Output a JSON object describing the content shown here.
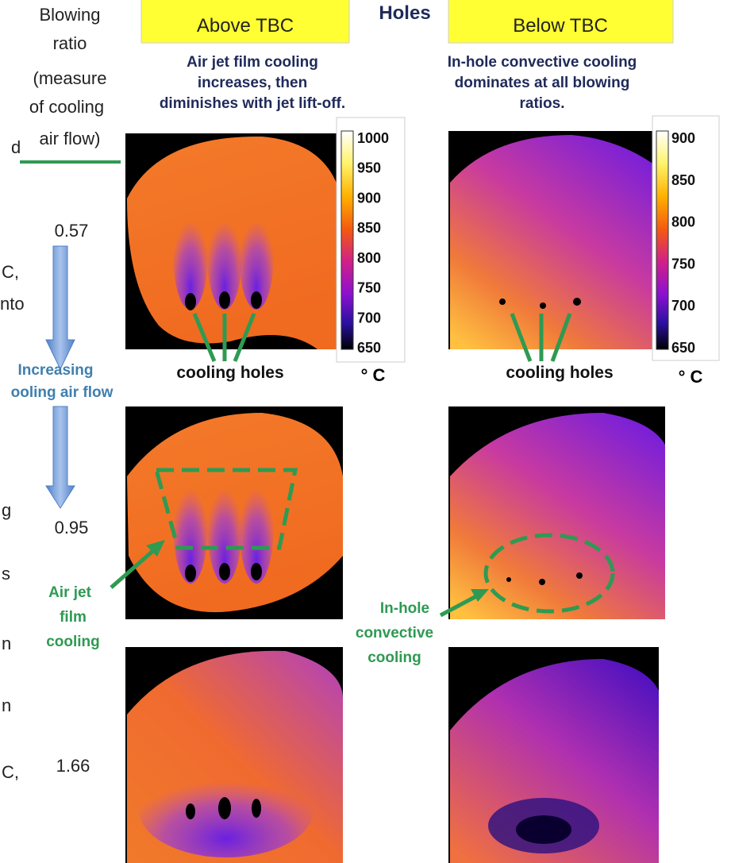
{
  "left_labels": {
    "blowing_ratio": [
      "Blowing",
      "ratio",
      "(measure",
      "of cooling",
      "air flow)"
    ],
    "increasing": [
      "Increasing",
      "ooling air flow"
    ],
    "ratios": [
      "0.57",
      "0.95",
      "1.66"
    ],
    "cropped_fragments": [
      "d",
      "C,",
      "nto",
      "g",
      "s",
      "n",
      "n",
      "C,"
    ]
  },
  "center_heading": "Holes",
  "columns": [
    {
      "heading": "Above TBC",
      "description": [
        "Air jet film cooling",
        "increases, then",
        "diminishes with jet lift-off."
      ],
      "colorbar": {
        "ticks": [
          1000,
          950,
          900,
          850,
          800,
          750,
          700,
          650
        ],
        "unit": "° C"
      },
      "hole_label": "cooling holes",
      "callout": [
        "Air jet",
        "film",
        "cooling"
      ]
    },
    {
      "heading": "Below TBC",
      "description": [
        "In-hole convective cooling",
        "dominates at all blowing",
        "ratios."
      ],
      "colorbar": {
        "ticks": [
          900,
          850,
          800,
          750,
          700,
          650
        ],
        "unit": "° C"
      },
      "hole_label": "cooling holes",
      "callout": [
        "In-hole",
        "convective",
        "cooling"
      ]
    }
  ]
}
